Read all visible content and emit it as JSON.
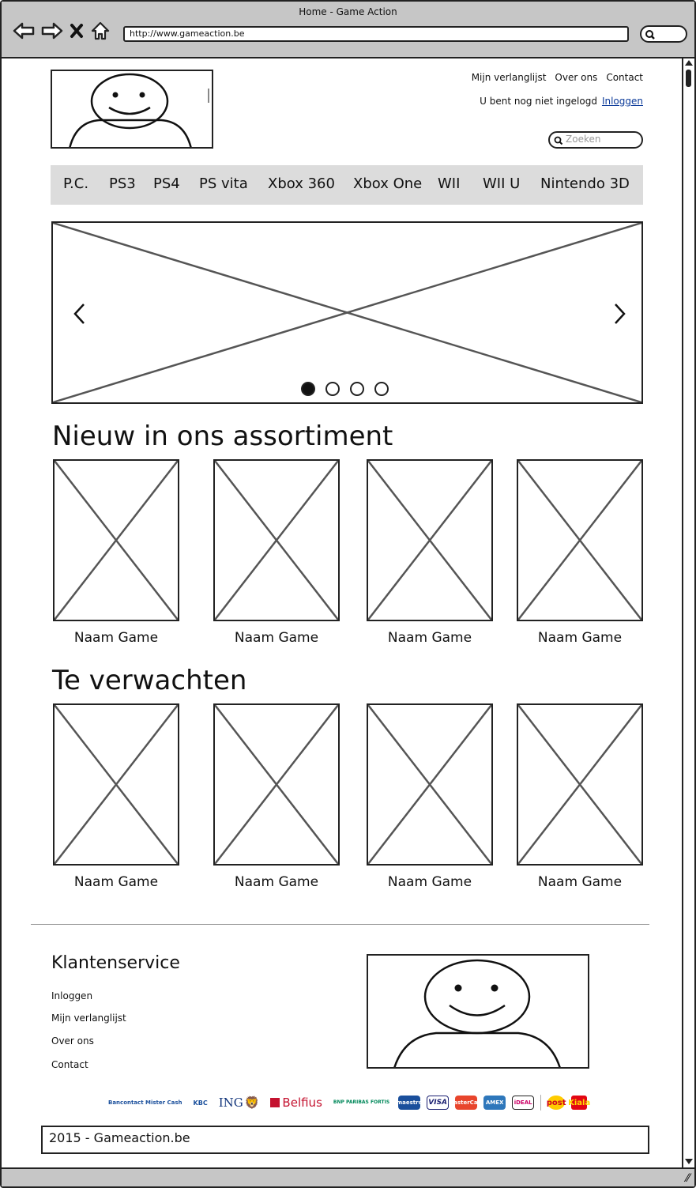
{
  "browser": {
    "title": "Home - Game Action",
    "url": "http://www.gameaction.be"
  },
  "header": {
    "links": [
      "Mijn verlanglijst",
      "Over ons",
      "Contact"
    ],
    "login_status": "U bent nog niet ingelogd",
    "login_link": "Inloggen",
    "search_placeholder": "Zoeken"
  },
  "menu": {
    "items": [
      "P.C.",
      "PS3",
      "PS4",
      "PS vita",
      "Xbox 360",
      "Xbox One",
      "WII",
      "WII U",
      "Nintendo 3D"
    ]
  },
  "carousel": {
    "slide_count": 4,
    "active_slide": 1,
    "prev_icon": "chevron-left-icon",
    "next_icon": "chevron-right-icon"
  },
  "sections": [
    {
      "heading": "Nieuw in ons assortiment",
      "games": [
        "Naam Game",
        "Naam Game",
        "Naam Game",
        "Naam Game"
      ]
    },
    {
      "heading": "Te verwachten",
      "games": [
        "Naam Game",
        "Naam Game",
        "Naam Game",
        "Naam Game"
      ]
    }
  ],
  "footer": {
    "heading": "Klantenservice",
    "links": [
      "Inloggen",
      "Mijn verlanglijst",
      "Over ons",
      "Contact"
    ],
    "payment_methods": {
      "bancontact": "Bancontact Mister Cash",
      "kbc": "KBC",
      "ing": "ING",
      "belfius": "Belfius",
      "bnp": "BNP PARIBAS FORTIS",
      "maestro": "maestro",
      "visa": "VISA",
      "mastercard": "MasterCard",
      "amex": "AMEX",
      "ideal": "iDEAL",
      "post": "post",
      "kiala": "Kiala"
    },
    "copyright": "2015 - Gameaction.be"
  },
  "colors": {
    "menu_background": "#dcdcdc",
    "link": "#0b3a99",
    "chrome": "#c6c6c6"
  }
}
